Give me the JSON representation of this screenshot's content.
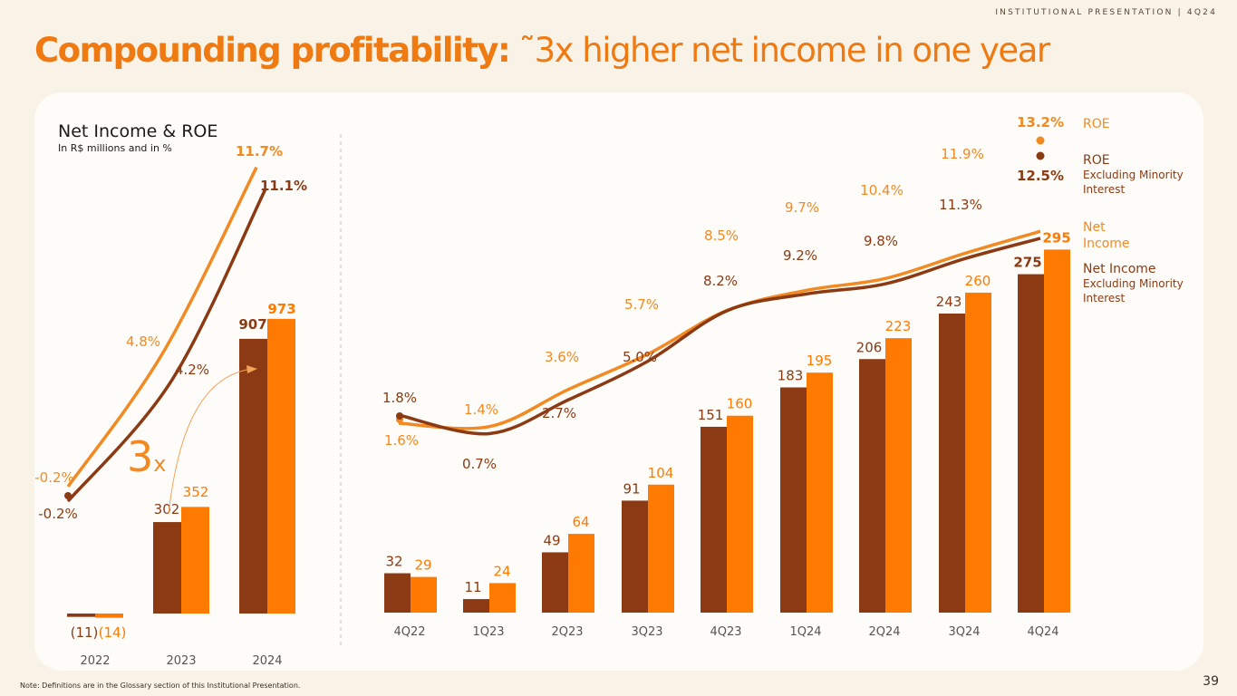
{
  "header": {
    "right_label": "INSTITUTIONAL PRESENTATION | 4Q24"
  },
  "title": {
    "bold": "Compounding profitability:",
    "light": " ˜3x higher net income in one year"
  },
  "footnote": "Note: Definitions are in the Glossary section of this Institutional Presentation.",
  "page_number": "39",
  "colors": {
    "dark": "#8b3a14",
    "orange": "#ff7a00",
    "line_orange": "#f28a24",
    "axis_text": "#555555"
  },
  "chart_data": [
    {
      "type": "bar",
      "title": "Net Income & ROE",
      "subtitle": "In R$ millions and in %",
      "categories": [
        "2022",
        "2023",
        "2024"
      ],
      "series": [
        {
          "name": "Net Income Excluding Minority Interest",
          "values": [
            -11,
            302,
            907
          ],
          "labels": [
            "(11)",
            "302",
            "907"
          ]
        },
        {
          "name": "Net Income",
          "values": [
            -14,
            352,
            973
          ],
          "labels": [
            "(14)",
            "352",
            "973"
          ]
        }
      ],
      "lines": [
        {
          "name": "ROE",
          "values": [
            -0.2,
            4.8,
            11.7
          ],
          "labels": [
            "-0.2%",
            "4.8%",
            "11.7%"
          ]
        },
        {
          "name": "ROE Excluding Minority Interest",
          "values": [
            -0.2,
            4.2,
            11.1
          ],
          "labels": [
            "-0.2%",
            "4.2%",
            "11.1%"
          ]
        }
      ],
      "annotation": "3x"
    },
    {
      "type": "bar",
      "categories": [
        "4Q22",
        "1Q23",
        "2Q23",
        "3Q23",
        "4Q23",
        "1Q24",
        "2Q24",
        "3Q24",
        "4Q24"
      ],
      "series": [
        {
          "name": "Net Income Excluding Minority Interest",
          "values": [
            32,
            11,
            49,
            91,
            151,
            183,
            206,
            243,
            275
          ]
        },
        {
          "name": "Net Income",
          "values": [
            29,
            24,
            64,
            104,
            160,
            195,
            223,
            260,
            295
          ]
        }
      ],
      "lines": [
        {
          "name": "ROE",
          "values": [
            1.6,
            1.4,
            3.6,
            5.7,
            8.5,
            9.7,
            10.4,
            11.9,
            13.2
          ],
          "labels": [
            "1.6%",
            "1.4%",
            "3.6%",
            "5.7%",
            "8.5%",
            "9.7%",
            "10.4%",
            "11.9%",
            "13.2%"
          ]
        },
        {
          "name": "ROE Excluding Minority Interest",
          "values": [
            1.8,
            0.7,
            2.7,
            5.0,
            8.2,
            9.2,
            9.8,
            11.3,
            12.5
          ],
          "labels": [
            "1.8%",
            "0.7%",
            "2.7%",
            "5.0%",
            "8.2%",
            "9.2%",
            "9.8%",
            "11.3%",
            "12.5%"
          ]
        }
      ],
      "legend": [
        {
          "title": "ROE",
          "sub": ""
        },
        {
          "title": "ROE",
          "sub": "Excluding Minority Interest"
        },
        {
          "title": "Net Income",
          "sub": ""
        },
        {
          "title": "Net Income",
          "sub": "Excluding Minority Interest"
        }
      ]
    }
  ]
}
